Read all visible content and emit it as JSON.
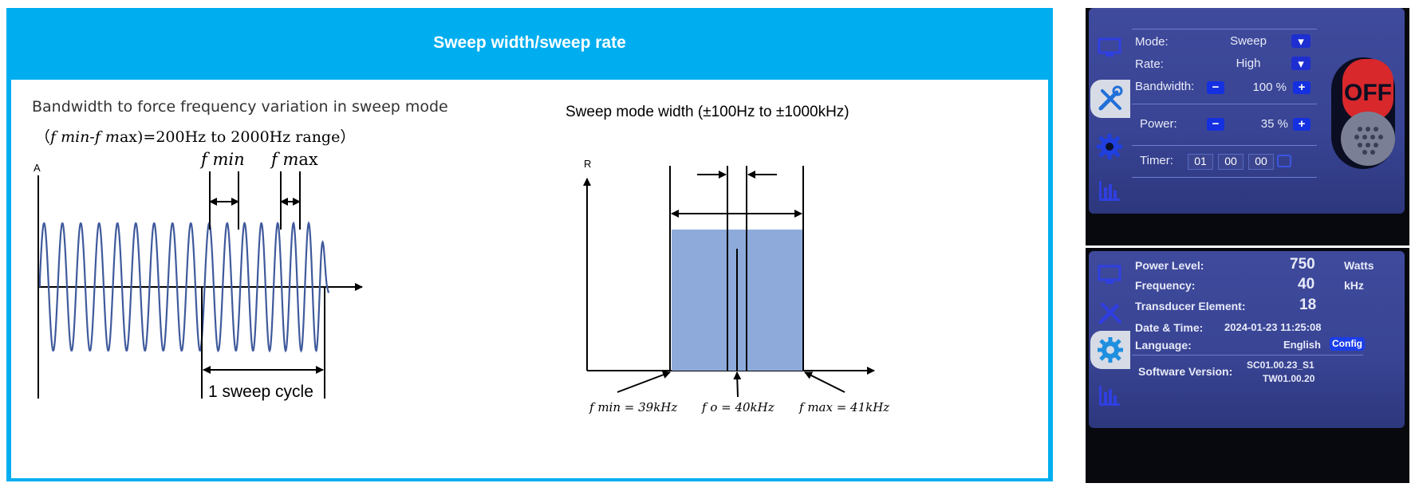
{
  "banner": {
    "title": "Sweep width/sweep rate"
  },
  "left_diagram": {
    "heading": "Bandwidth to force frequency variation in sweep mode",
    "range_text_a": "（",
    "range_fmin": "f min",
    "range_dash": "-",
    "range_fmax": "f m",
    "range_text_b": "ax)=200Hz to 2000Hz  range）",
    "axis_a": "A",
    "label_fmin": "f min",
    "label_fmax_f": "f m",
    "label_fmax_rest": "ax",
    "sweep_cycle": "1 sweep cycle"
  },
  "right_diagram": {
    "heading": "Sweep mode width (±100Hz to ±1000kHz)",
    "axis_r": "R",
    "fmin_label": "f min = 39kHz",
    "fo_label": "f o = 40kHz",
    "fmax_label": "f max = 41kHz",
    "band_color": "#8eaadb"
  },
  "screen1": {
    "mode_label": "Mode:",
    "mode_value": "Sweep",
    "rate_label": "Rate:",
    "rate_value": "High",
    "bandwidth_label": "Bandwidth:",
    "bandwidth_value": "100 %",
    "power_label": "Power:",
    "power_value": "35 %",
    "timer_label": "Timer:",
    "timer_h": "01",
    "timer_m": "00",
    "timer_s": "00",
    "off_label": "OFF",
    "minus": "−",
    "plus": "+"
  },
  "screen2": {
    "power_level_label": "Power Level:",
    "power_level_value": "750",
    "power_level_unit": "Watts",
    "frequency_label": "Frequency:",
    "frequency_value": "40",
    "frequency_unit": "kHz",
    "transducer_label": "Transducer Element:",
    "transducer_value": "18",
    "datetime_label": "Date & Time:",
    "datetime_value": "2024-01-23 11:25:08",
    "language_label": "Language:",
    "language_value": "English",
    "config_label": "Config",
    "software_label": "Software Version:",
    "software_line1": "SC01.00.23_S1",
    "software_line2": "TW01.00.20"
  }
}
